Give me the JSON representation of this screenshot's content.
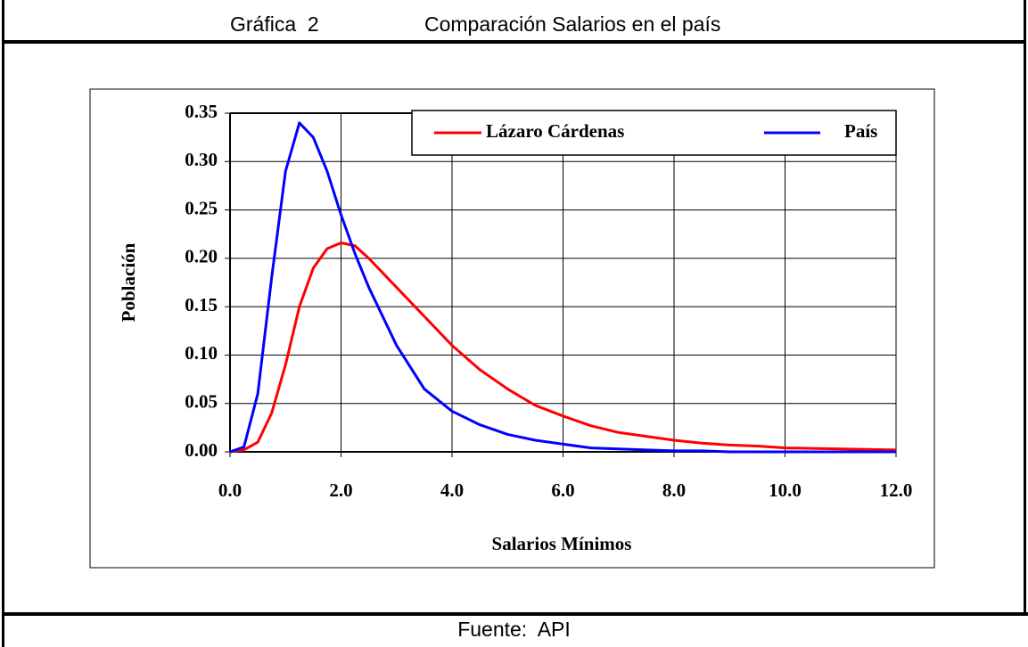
{
  "header": {
    "label": "Gráfica  2",
    "title": "Comparación Salarios en el país"
  },
  "footer": "Fuente:  API",
  "chart_data": {
    "type": "line",
    "xlabel": "Salarios Mínimos",
    "ylabel": "Población",
    "x": [
      0,
      0.25,
      0.5,
      0.75,
      1,
      1.25,
      1.5,
      1.75,
      2,
      2.25,
      2.5,
      3,
      3.5,
      4,
      4.5,
      5,
      5.5,
      6,
      6.5,
      7,
      7.5,
      8,
      8.5,
      9,
      9.5,
      10,
      11,
      12
    ],
    "series": [
      {
        "name": "Lázaro Cárdenas",
        "color": "#ff0000",
        "values": [
          0,
          0.002,
          0.01,
          0.04,
          0.09,
          0.15,
          0.19,
          0.21,
          0.216,
          0.213,
          0.2,
          0.17,
          0.14,
          0.11,
          0.085,
          0.065,
          0.048,
          0.037,
          0.027,
          0.02,
          0.016,
          0.012,
          0.009,
          0.007,
          0.006,
          0.004,
          0.003,
          0.002
        ]
      },
      {
        "name": "País",
        "color": "#0000ff",
        "values": [
          0,
          0.005,
          0.06,
          0.18,
          0.29,
          0.34,
          0.325,
          0.29,
          0.245,
          0.205,
          0.17,
          0.11,
          0.065,
          0.042,
          0.028,
          0.018,
          0.012,
          0.008,
          0.004,
          0.003,
          0.002,
          0.001,
          0.001,
          0,
          0,
          0,
          0,
          0
        ]
      }
    ],
    "xlim": [
      0,
      12
    ],
    "xticks": [
      {
        "value": 0,
        "label": "0.0"
      },
      {
        "value": 2,
        "label": "2.0"
      },
      {
        "value": 4,
        "label": "4.0"
      },
      {
        "value": 6,
        "label": "6.0"
      },
      {
        "value": 8,
        "label": "8.0"
      },
      {
        "value": 10,
        "label": "10.0"
      },
      {
        "value": 12,
        "label": "12.0"
      }
    ],
    "ylim": [
      0,
      0.35
    ],
    "yticks": [
      {
        "value": 0,
        "label": "0.00"
      },
      {
        "value": 0.05,
        "label": "0.05"
      },
      {
        "value": 0.1,
        "label": "0.10"
      },
      {
        "value": 0.15,
        "label": "0.15"
      },
      {
        "value": 0.2,
        "label": "0.20"
      },
      {
        "value": 0.25,
        "label": "0.25"
      },
      {
        "value": 0.3,
        "label": "0.30"
      },
      {
        "value": 0.35,
        "label": "0.35"
      }
    ],
    "grid": true,
    "legend": "upper right"
  }
}
